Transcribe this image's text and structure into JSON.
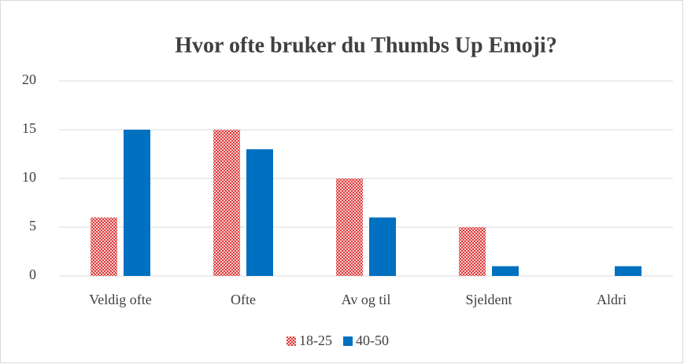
{
  "chart_data": {
    "type": "bar",
    "title": "Hvor ofte bruker du Thumbs Up Emoji?",
    "categories": [
      "Veldig ofte",
      "Ofte",
      "Av og til",
      "Sjeldent",
      "Aldri"
    ],
    "series": [
      {
        "name": "18-25",
        "color": "#e03a3a",
        "pattern": "checker",
        "values": [
          6,
          15,
          10,
          5,
          0
        ]
      },
      {
        "name": "40-50",
        "color": "#0070c0",
        "values": [
          15,
          13,
          6,
          1,
          1
        ]
      }
    ],
    "ylim": [
      0,
      20
    ],
    "yticks": [
      0,
      5,
      10,
      15,
      20
    ],
    "grid": true,
    "legend": "bottom"
  }
}
